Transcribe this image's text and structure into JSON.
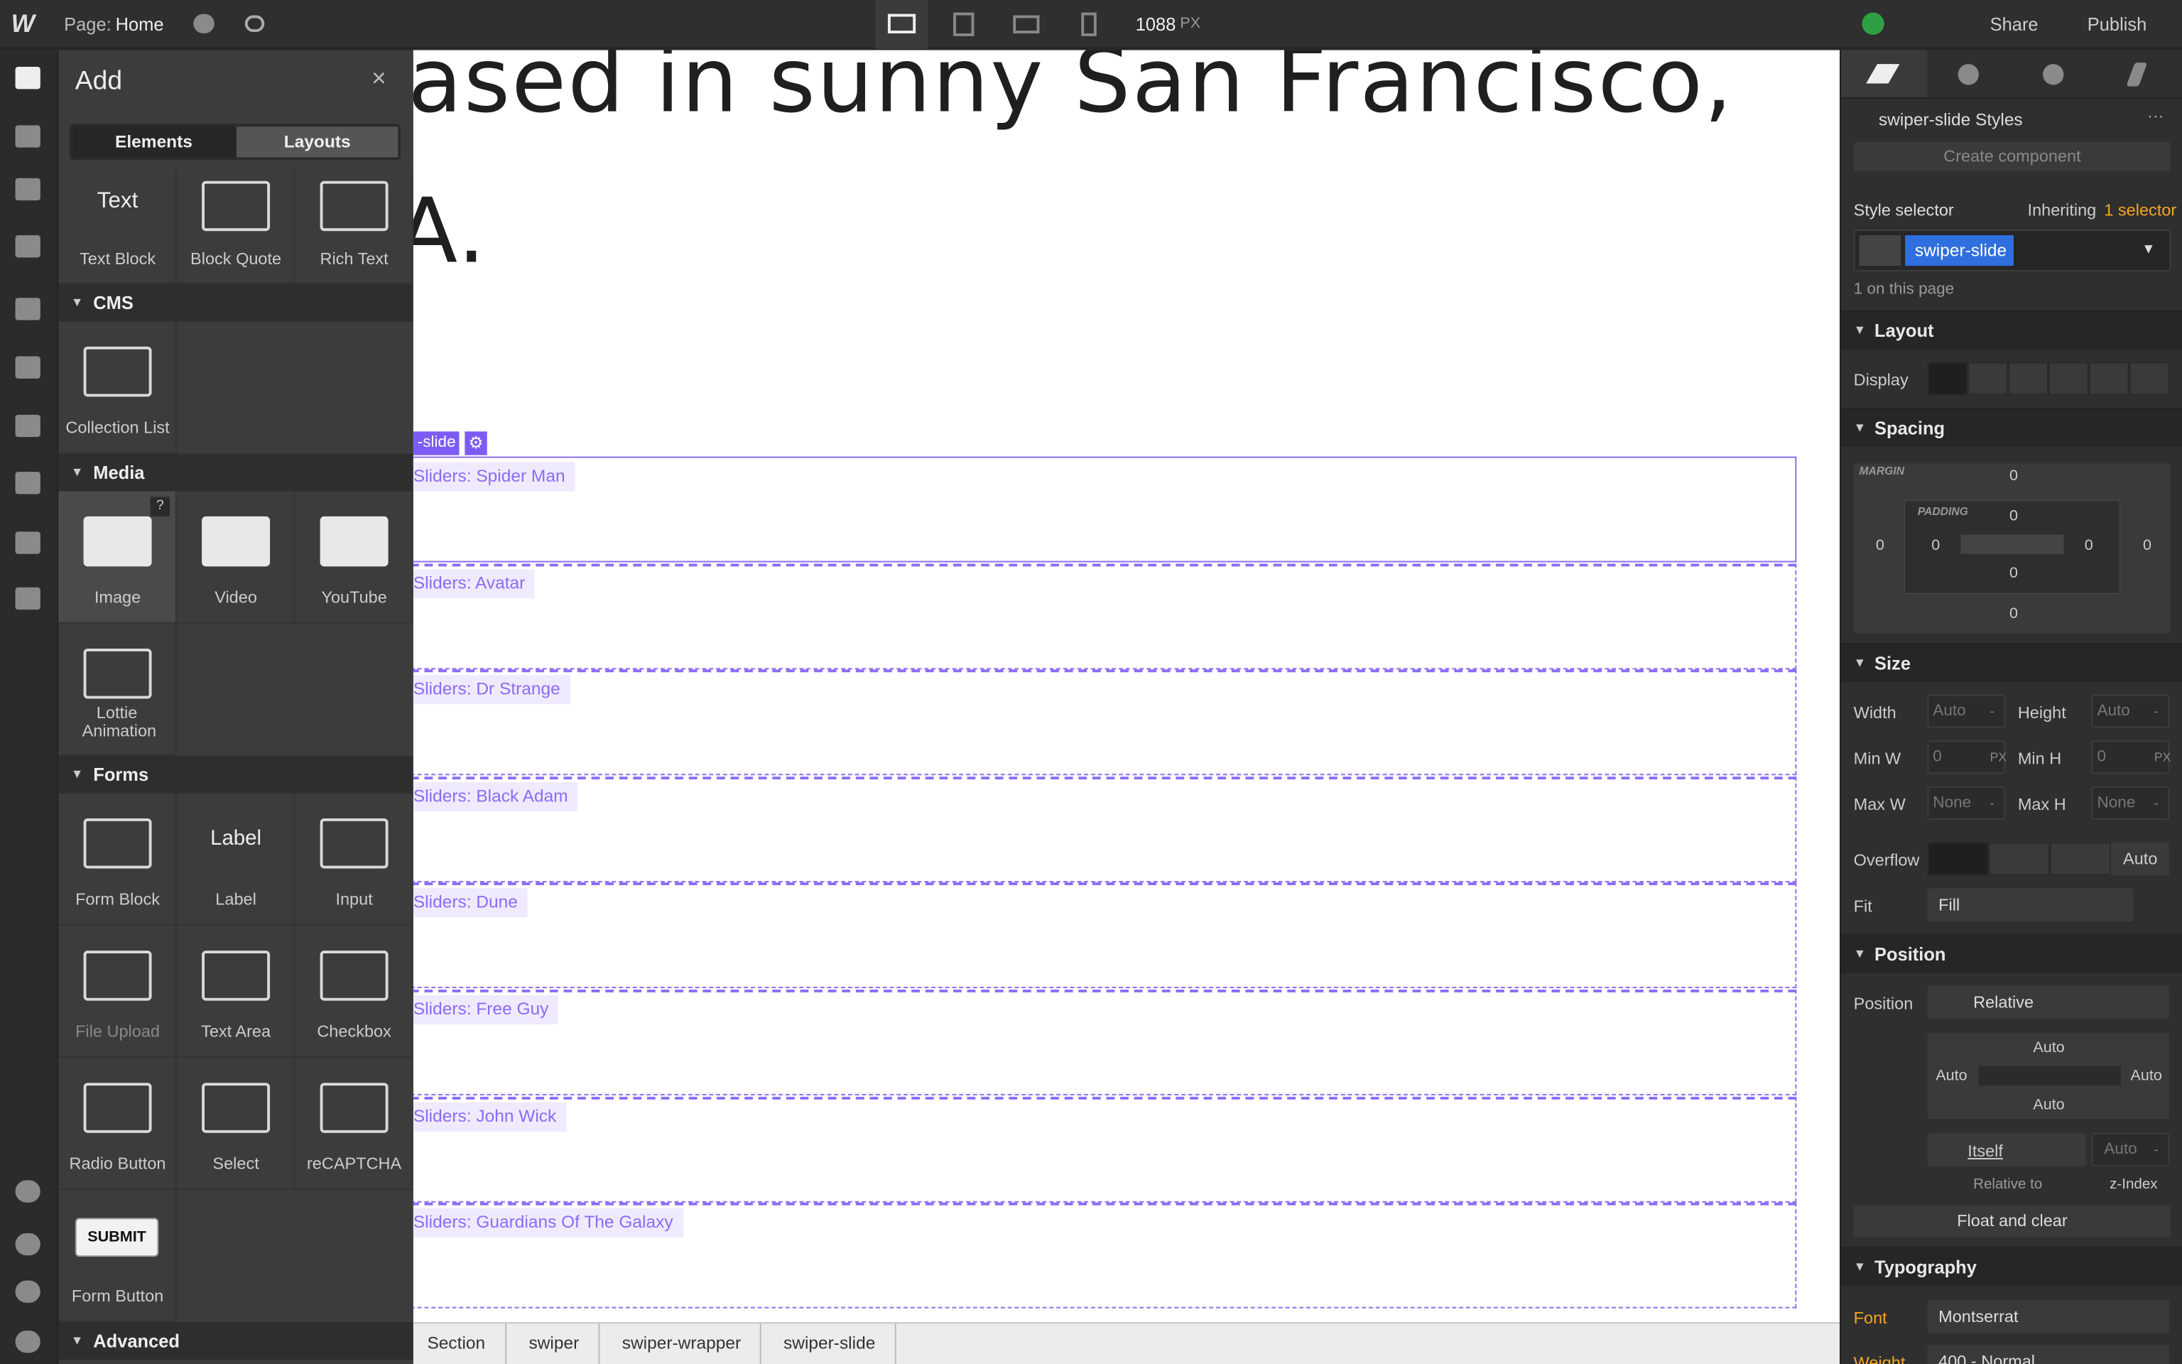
{
  "topbar": {
    "page_label": "Page:",
    "page_name": "Home",
    "width": "1088",
    "unit": "PX",
    "share": "Share",
    "publish": "Publish"
  },
  "add_panel": {
    "title": "Add",
    "tabs": [
      "Elements",
      "Layouts"
    ],
    "groups": [
      {
        "items": [
          {
            "icon": "Text",
            "label": "Text Block"
          },
          {
            "label": "Block Quote"
          },
          {
            "label": "Rich Text"
          }
        ]
      },
      {
        "name": "CMS",
        "items": [
          {
            "label": "Collection List"
          }
        ]
      },
      {
        "name": "Media",
        "items": [
          {
            "label": "Image",
            "badge": "?"
          },
          {
            "label": "Video"
          },
          {
            "label": "YouTube"
          },
          {
            "label": "Lottie Animation"
          }
        ]
      },
      {
        "name": "Forms",
        "items": [
          {
            "label": "Form Block"
          },
          {
            "icon": "Label",
            "label": "Label"
          },
          {
            "label": "Input"
          },
          {
            "label": "File Upload"
          },
          {
            "label": "Text Area"
          },
          {
            "label": "Checkbox"
          },
          {
            "label": "Radio Button"
          },
          {
            "label": "Select"
          },
          {
            "label": "reCAPTCHA"
          },
          {
            "icon": "SUBMIT",
            "label": "Form Button"
          }
        ]
      },
      {
        "name": "Advanced",
        "items": []
      }
    ]
  },
  "canvas": {
    "heading": [
      "ased in sunny San Francisco,",
      "A."
    ],
    "selected_tag": "-slide",
    "slides": [
      "Sliders: Spider Man",
      "Sliders: Avatar",
      "Sliders: Dr Strange",
      "Sliders: Black Adam",
      "Sliders: Dune",
      "Sliders: Free Guy",
      "Sliders: John Wick",
      "Sliders: Guardians Of The Galaxy"
    ]
  },
  "breadcrumbs": [
    "Section",
    "swiper",
    "swiper-wrapper",
    "swiper-slide"
  ],
  "style_panel": {
    "title": "swiper-slide Styles",
    "create": "Create component",
    "selector_label": "Style selector",
    "inheriting": "Inheriting",
    "inherit_count": "1 selector",
    "chip": "swiper-slide",
    "on_page": "1 on this page",
    "layout": "Layout",
    "display_label": "Display",
    "spacing": "Spacing",
    "margin_label": "MARGIN",
    "padding_label": "PADDING",
    "margin": [
      "0",
      "0",
      "0",
      "0"
    ],
    "padding": [
      "0",
      "0",
      "0",
      "0"
    ],
    "size": "Size",
    "size_fields": [
      {
        "label": "Width",
        "value": "Auto",
        "unit": "-"
      },
      {
        "label": "Height",
        "value": "Auto",
        "unit": "-"
      },
      {
        "label": "Min W",
        "value": "0",
        "unit": "PX"
      },
      {
        "label": "Min H",
        "value": "0",
        "unit": "PX"
      },
      {
        "label": "Max W",
        "value": "None",
        "unit": "-"
      },
      {
        "label": "Max H",
        "value": "None",
        "unit": "-"
      }
    ],
    "overflow_label": "Overflow",
    "overflow_auto": "Auto",
    "fit_label": "Fit",
    "fit": "Fill",
    "position": "Position",
    "position_label": "Position",
    "position_value": "Relative",
    "offsets": [
      "Auto",
      "Auto",
      "Auto",
      "Auto"
    ],
    "itself": "Itself",
    "zindex_value": "Auto",
    "zindex_unit": "-",
    "relative_to": "Relative to",
    "zindex": "z-Index",
    "float": "Float and clear",
    "typography": "Typography",
    "font_label": "Font",
    "font": "Montserrat",
    "weight_label": "Weight",
    "weight": "400 - Normal"
  }
}
